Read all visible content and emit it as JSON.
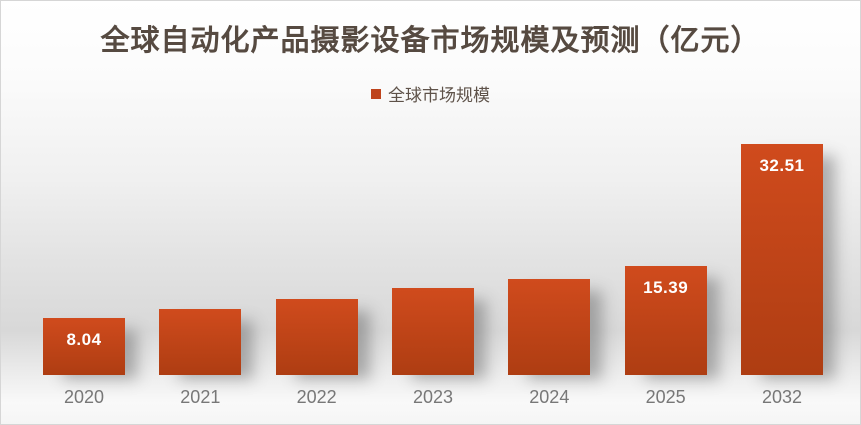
{
  "chart_data": {
    "type": "bar",
    "title": "全球自动化产品摄影设备市场规模及预测（亿元）",
    "unit": "亿元",
    "legend": {
      "label": "全球市场规模",
      "position": "top-center",
      "swatch_color": "#be441d"
    },
    "categories": [
      "2020",
      "2021",
      "2022",
      "2023",
      "2024",
      "2025",
      "2032"
    ],
    "series": [
      {
        "name": "全球市场规模",
        "values": [
          8.04,
          9.3,
          10.7,
          12.2,
          13.5,
          15.39,
          32.51
        ],
        "data_labels": [
          "8.04",
          "",
          "",
          "",
          "",
          "15.39",
          "32.51"
        ]
      }
    ],
    "ylim": [
      0,
      33
    ],
    "grid": false,
    "y_axis_visible": false,
    "colors": {
      "bar_top": "#d04b1d",
      "bar_bottom": "#ae3d12",
      "data_label": "#ffffff",
      "tick_label": "#777777",
      "title": "#564a41"
    }
  }
}
